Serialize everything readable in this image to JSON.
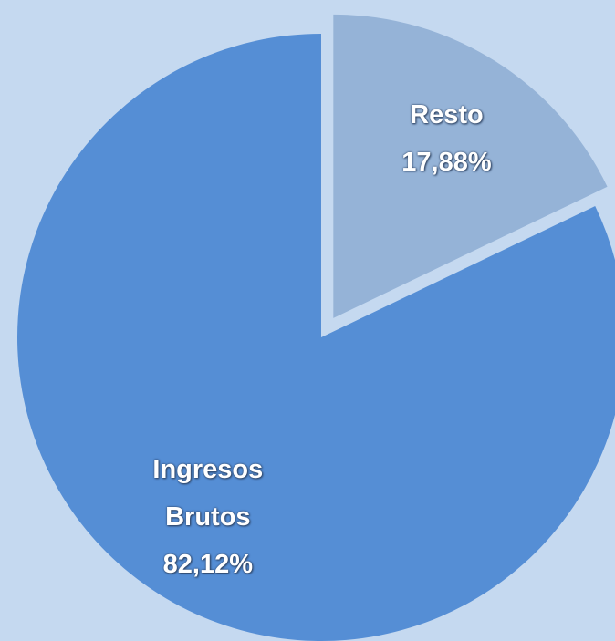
{
  "chart_data": {
    "type": "pie",
    "categories": [
      "Resto",
      "Ingresos Brutos"
    ],
    "values": [
      17.88,
      82.12
    ],
    "value_labels": [
      "17,88%",
      "82,12%"
    ],
    "colors": [
      "#95b3d7",
      "#558ed5"
    ]
  }
}
